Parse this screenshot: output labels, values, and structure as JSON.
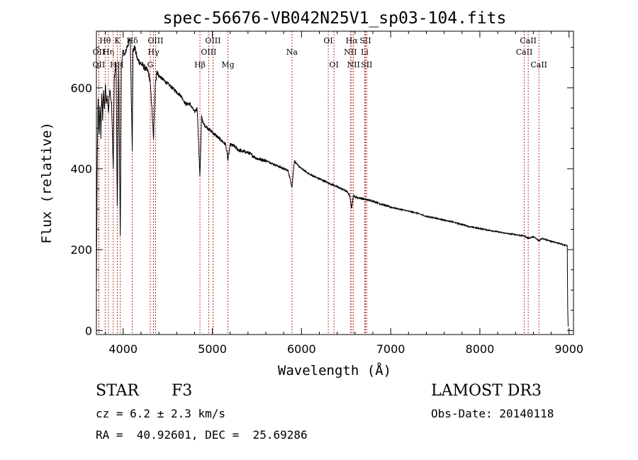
{
  "chart_data": {
    "type": "line",
    "title": "spec-56676-VB042N25V1_sp03-104.fits",
    "xlabel": "Wavelength (Å)",
    "ylabel": "Flux (relative)",
    "xlim": [
      3700,
      9050
    ],
    "ylim": [
      -10,
      740
    ],
    "xticks": [
      4000,
      5000,
      6000,
      7000,
      8000,
      9000
    ],
    "xtick_labels": [
      "4000",
      "5000",
      "6000",
      "7000",
      "8000",
      "9000"
    ],
    "yticks": [
      0,
      200,
      400,
      600
    ],
    "ytick_labels": [
      "0",
      "200",
      "400",
      "600"
    ],
    "series": [
      {
        "name": "flux",
        "x": [
          3700,
          3710,
          3720,
          3730,
          3740,
          3750,
          3760,
          3770,
          3780,
          3790,
          3800,
          3810,
          3820,
          3835,
          3850,
          3870,
          3889,
          3900,
          3920,
          3934,
          3950,
          3968,
          3980,
          4000,
          4020,
          4040,
          4060,
          4080,
          4102,
          4110,
          4130,
          4160,
          4200,
          4240,
          4280,
          4300,
          4320,
          4340,
          4360,
          4380,
          4400,
          4450,
          4500,
          4550,
          4600,
          4650,
          4700,
          4750,
          4800,
          4830,
          4861,
          4880,
          4900,
          4950,
          5000,
          5050,
          5100,
          5150,
          5175,
          5200,
          5250,
          5300,
          5400,
          5500,
          5600,
          5700,
          5800,
          5850,
          5893,
          5920,
          5950,
          6000,
          6100,
          6200,
          6300,
          6400,
          6500,
          6540,
          6563,
          6580,
          6600,
          6700,
          6800,
          6900,
          7000,
          7100,
          7200,
          7300,
          7400,
          7500,
          7600,
          7700,
          7800,
          7900,
          8000,
          8100,
          8200,
          8300,
          8400,
          8498,
          8542,
          8600,
          8662,
          8700,
          8800,
          8900,
          8960,
          8980,
          8985,
          8990
        ],
        "values": [
          100,
          440,
          570,
          480,
          560,
          480,
          590,
          520,
          600,
          540,
          610,
          560,
          580,
          540,
          600,
          560,
          400,
          620,
          660,
          300,
          650,
          230,
          660,
          690,
          680,
          700,
          710,
          720,
          450,
          690,
          700,
          670,
          660,
          650,
          640,
          620,
          560,
          470,
          610,
          640,
          630,
          620,
          610,
          600,
          590,
          580,
          560,
          560,
          540,
          550,
          380,
          530,
          510,
          500,
          490,
          480,
          470,
          460,
          420,
          460,
          455,
          445,
          440,
          425,
          420,
          410,
          400,
          395,
          355,
          420,
          410,
          400,
          385,
          375,
          365,
          355,
          345,
          335,
          300,
          335,
          330,
          325,
          320,
          312,
          305,
          300,
          295,
          290,
          282,
          278,
          273,
          268,
          262,
          256,
          252,
          248,
          244,
          240,
          237,
          234,
          228,
          232,
          222,
          228,
          220,
          215,
          210,
          210,
          60,
          10
        ]
      }
    ],
    "lines": [
      {
        "name": "Hθ",
        "wavelength": 3798,
        "row": 1
      },
      {
        "name": "OII",
        "wavelength": 3727,
        "row": 2
      },
      {
        "name": "OII",
        "wavelength": 3727,
        "row": 3
      },
      {
        "name": "Hη",
        "wavelength": 3835,
        "row": 2
      },
      {
        "name": "H",
        "wavelength": 3889,
        "row": 3
      },
      {
        "name": "K",
        "wavelength": 3934,
        "row": 1
      },
      {
        "name": "H",
        "wavelength": 3968,
        "row": 3
      },
      {
        "name": "Hδ",
        "wavelength": 4102,
        "row": 1
      },
      {
        "name": "G",
        "wavelength": 4304,
        "row": 3
      },
      {
        "name": "Hγ",
        "wavelength": 4340,
        "row": 2
      },
      {
        "name": "OIII",
        "wavelength": 4363,
        "row": 1
      },
      {
        "name": "Hβ",
        "wavelength": 4861,
        "row": 3
      },
      {
        "name": "OIII",
        "wavelength": 4959,
        "row": 2
      },
      {
        "name": "OIII",
        "wavelength": 5007,
        "row": 1
      },
      {
        "name": "Mg",
        "wavelength": 5175,
        "row": 3
      },
      {
        "name": "Na",
        "wavelength": 5893,
        "row": 2
      },
      {
        "name": "OI",
        "wavelength": 6300,
        "row": 1
      },
      {
        "name": "OI",
        "wavelength": 6364,
        "row": 3
      },
      {
        "name": "NII",
        "wavelength": 6548,
        "row": 2
      },
      {
        "name": "NII",
        "wavelength": 6583,
        "row": 3
      },
      {
        "name": "Hα",
        "wavelength": 6563,
        "row": 1
      },
      {
        "name": "SII",
        "wavelength": 6717,
        "row": 1
      },
      {
        "name": "SII",
        "wavelength": 6731,
        "row": 3
      },
      {
        "name": "Li",
        "wavelength": 6708,
        "row": 2
      },
      {
        "name": "CaII",
        "wavelength": 8498,
        "row": 2
      },
      {
        "name": "CaII",
        "wavelength": 8542,
        "row": 1
      },
      {
        "name": "CaII",
        "wavelength": 8662,
        "row": 3
      }
    ],
    "line_color": "#aa0000",
    "spectrum_color": "#000000"
  },
  "info": {
    "object_class": "STAR",
    "subclass": "F3",
    "survey": "LAMOST DR3",
    "redshift": "cz = 6.2 ± 2.3 km/s",
    "obs_date": "Obs-Date: 20140118",
    "coords": "RA =  40.92601, DEC =  25.69286"
  }
}
